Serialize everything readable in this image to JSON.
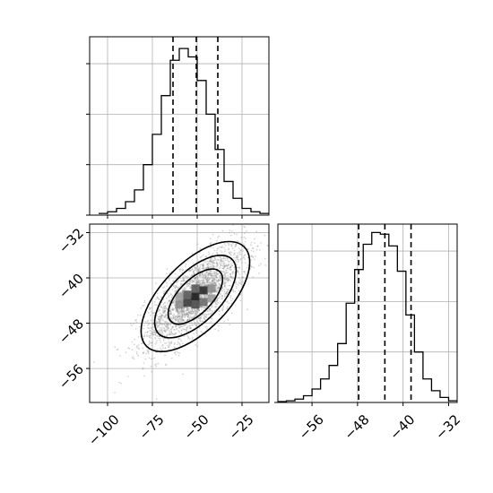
{
  "chart_data": [
    {
      "type": "histogram",
      "panel": "top-left",
      "parameter_axis": {
        "lim": [
          -110,
          -10
        ],
        "ticks": [
          -100,
          -75,
          -50,
          -25
        ],
        "tick_labels_shown": false
      },
      "bin_edges": [
        -105,
        -100,
        -95,
        -90,
        -85,
        -80,
        -75,
        -70,
        -65,
        -60,
        -55,
        -50,
        -45,
        -40,
        -35,
        -30,
        -25,
        -20,
        -15,
        -10
      ],
      "counts": [
        1,
        2,
        4,
        8,
        15,
        30,
        48,
        71,
        92,
        99,
        94,
        80,
        60,
        39,
        20,
        10,
        4,
        2,
        1
      ],
      "count_ticks": [
        0,
        30,
        60,
        90
      ],
      "ylim": [
        0,
        106
      ],
      "quantiles": [
        -63.5,
        -50.5,
        -38.5
      ],
      "grid": true
    },
    {
      "type": "histogram",
      "panel": "bottom-right",
      "parameter_axis": {
        "lim": [
          -62,
          -30.5
        ],
        "ticks": [
          -56,
          -48,
          -40,
          -32
        ],
        "tick_labels": [
          "−56",
          "−48",
          "−40",
          "−32"
        ]
      },
      "bin_edges": [
        -62,
        -60.5,
        -59,
        -57.5,
        -56,
        -54.5,
        -53,
        -51.5,
        -50,
        -48.5,
        -47,
        -45.5,
        -44,
        -42.5,
        -41,
        -39.5,
        -38,
        -36.5,
        -35,
        -33.5,
        -32,
        -30.5
      ],
      "counts": [
        0.5,
        1,
        2,
        4,
        8,
        14,
        22,
        35,
        59,
        79,
        94,
        101,
        100,
        93,
        78,
        52,
        30,
        14,
        7,
        3,
        1
      ],
      "count_ticks": [
        0,
        30,
        60,
        90
      ],
      "ylim": [
        0,
        106
      ],
      "quantiles": [
        -47.8,
        -43.2,
        -38.6
      ],
      "grid": true
    },
    {
      "type": "scatter",
      "panel": "bottom-left",
      "x_axis": {
        "lim": [
          -110,
          -10
        ],
        "ticks": [
          -100,
          -75,
          -50,
          -25
        ],
        "tick_labels": [
          "−100",
          "−75",
          "−50",
          "−25"
        ]
      },
      "y_axis": {
        "lim": [
          -62,
          -30.5
        ],
        "ticks": [
          -56,
          -48,
          -40,
          -32
        ],
        "tick_labels": [
          "−56",
          "−48",
          "−40",
          "−32"
        ]
      },
      "center": [
        -51,
        -43.3
      ],
      "sd": [
        14,
        4.5
      ],
      "correlation": 0.72,
      "n_points": 2600,
      "contour_levels": [
        "1σ",
        "1.5σ",
        "2σ"
      ],
      "grid": true
    }
  ]
}
